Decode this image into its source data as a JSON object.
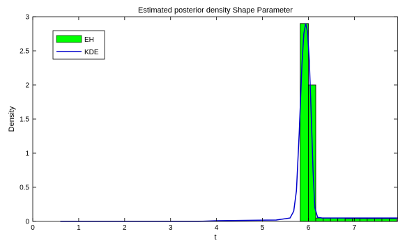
{
  "chart_data": {
    "type": "bar",
    "title": "Estimated posterior density Shape Parameter",
    "xlabel": "t",
    "ylabel": "Density",
    "xlim": [
      0,
      7.95
    ],
    "ylim": [
      0,
      3
    ],
    "xticks": [
      0,
      1,
      2,
      3,
      4,
      5,
      6,
      7
    ],
    "yticks": [
      0,
      0.5,
      1,
      1.5,
      2,
      2.5,
      3
    ],
    "xtick_labels": [
      "0",
      "1",
      "2",
      "3",
      "4",
      "5",
      "6",
      "7"
    ],
    "ytick_labels": [
      "0",
      "0.5",
      "1",
      "1.5",
      "2",
      "2.5",
      "3"
    ],
    "grid": false,
    "legend_position": "top-left",
    "series": [
      {
        "name": "EH",
        "kind": "histogram",
        "color": "#00ff00",
        "edge_color": "#000000",
        "bins": [
          {
            "x0": 5.82,
            "x1": 6.0,
            "y": 2.9
          },
          {
            "x0": 6.0,
            "x1": 6.16,
            "y": 2.0
          },
          {
            "x0": 6.16,
            "x1": 6.32,
            "y": 0.05
          },
          {
            "x0": 6.32,
            "x1": 6.48,
            "y": 0.05
          },
          {
            "x0": 6.48,
            "x1": 6.64,
            "y": 0.05
          },
          {
            "x0": 6.64,
            "x1": 6.8,
            "y": 0.05
          },
          {
            "x0": 6.8,
            "x1": 6.96,
            "y": 0.04
          },
          {
            "x0": 6.96,
            "x1": 7.12,
            "y": 0.04
          },
          {
            "x0": 7.12,
            "x1": 7.28,
            "y": 0.04
          },
          {
            "x0": 7.28,
            "x1": 7.44,
            "y": 0.04
          },
          {
            "x0": 7.44,
            "x1": 7.6,
            "y": 0.04
          },
          {
            "x0": 7.6,
            "x1": 7.76,
            "y": 0.04
          },
          {
            "x0": 7.76,
            "x1": 7.92,
            "y": 0.04
          }
        ]
      },
      {
        "name": "KDE",
        "kind": "line",
        "color": "#0000cc",
        "x": [
          0.6,
          3.6,
          4.0,
          5.3,
          5.6,
          5.68,
          5.74,
          5.8,
          5.86,
          5.9,
          5.94,
          5.98,
          6.02,
          6.06,
          6.1,
          6.14,
          6.2,
          6.3,
          7.0,
          7.95
        ],
        "y": [
          0.0,
          0.0,
          0.01,
          0.02,
          0.05,
          0.15,
          0.45,
          1.3,
          2.3,
          2.75,
          2.9,
          2.78,
          2.35,
          1.6,
          0.75,
          0.2,
          0.06,
          0.05,
          0.05,
          0.05
        ]
      }
    ]
  }
}
